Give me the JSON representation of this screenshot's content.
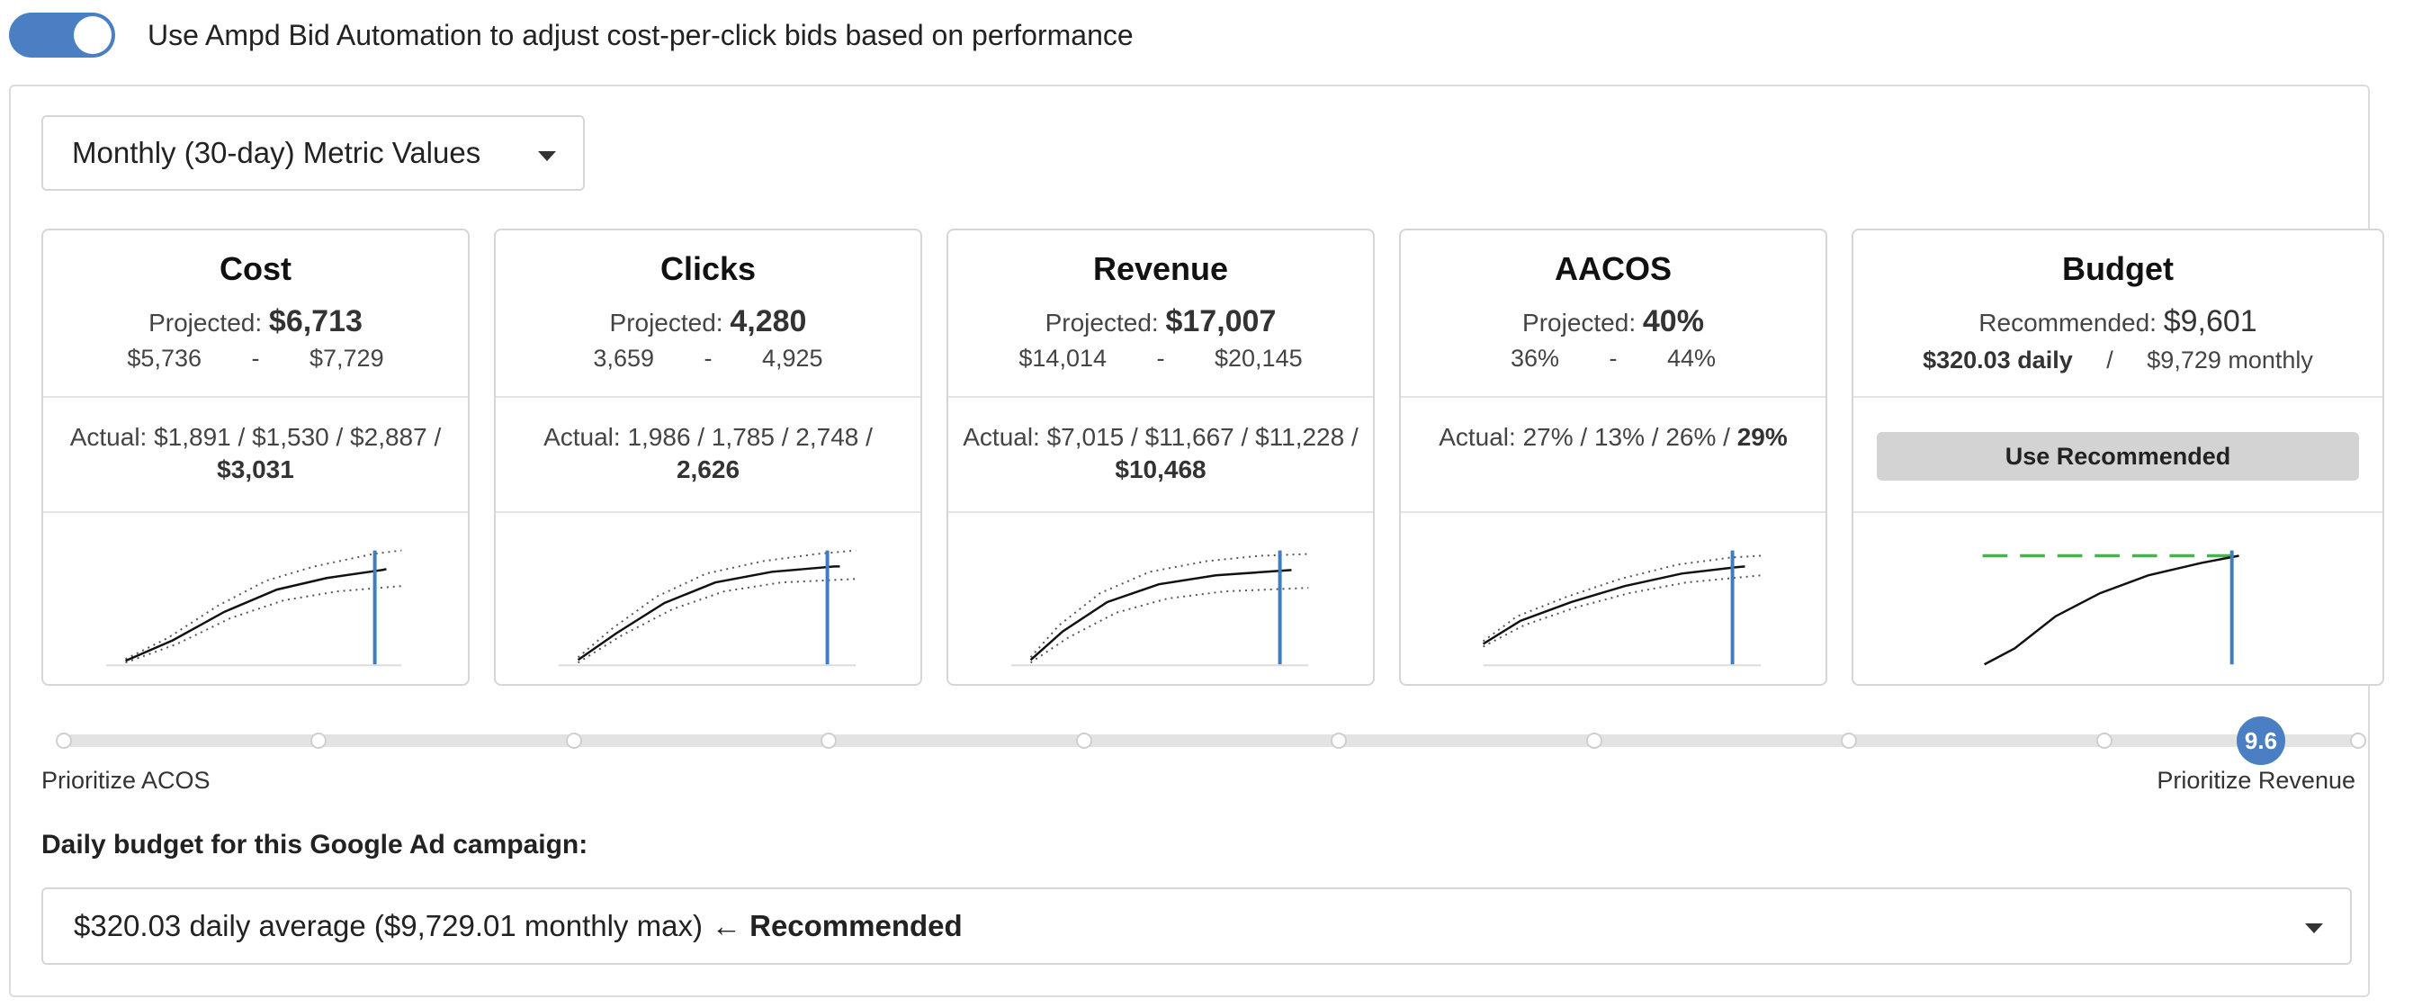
{
  "automation": {
    "toggle_on": true,
    "label": "Use Ampd Bid Automation to adjust cost-per-click bids based on performance",
    "accent": "#4a7fc4"
  },
  "metric_select": {
    "value": "Monthly (30-day) Metric Values"
  },
  "cards": [
    {
      "title": "Cost",
      "projected_label": "Projected:",
      "projected": "$6,713",
      "range_low": "$5,736",
      "range_sep": "-",
      "range_high": "$7,729",
      "actual_prefix": "Actual: $1,891 / $1,530 / $2,887 /",
      "actual_last": "$3,031"
    },
    {
      "title": "Clicks",
      "projected_label": "Projected:",
      "projected": "4,280",
      "range_low": "3,659",
      "range_sep": "-",
      "range_high": "4,925",
      "actual_prefix": "Actual: 1,986 / 1,785 / 2,748 /",
      "actual_last": "2,626"
    },
    {
      "title": "Revenue",
      "projected_label": "Projected:",
      "projected": "$17,007",
      "range_low": "$14,014",
      "range_sep": "-",
      "range_high": "$20,145",
      "actual_prefix": "Actual: $7,015 / $11,667 / $11,228 /",
      "actual_last": "$10,468"
    },
    {
      "title": "AACOS",
      "projected_label": "Projected:",
      "projected": "40%",
      "range_low": "36%",
      "range_sep": "-",
      "range_high": "44%",
      "actual_prefix": "Actual: 27% / 13% / 26% /",
      "actual_last": "29%"
    }
  ],
  "budget_card": {
    "title": "Budget",
    "recommended_label": "Recommended:",
    "recommended": "$9,601",
    "daily": "$320.03 daily",
    "sep": "/",
    "monthly": "$9,729 monthly",
    "button": "Use Recommended"
  },
  "slider": {
    "value": "9.6",
    "left_label": "Prioritize ACOS",
    "right_label": "Prioritize Revenue",
    "tick_count": 10
  },
  "daily_budget": {
    "heading": "Daily budget for this Google Ad campaign:",
    "value": "$320.03 daily average ($9,729.01 monthly max)",
    "recommended_tag": "← Recommended"
  }
}
